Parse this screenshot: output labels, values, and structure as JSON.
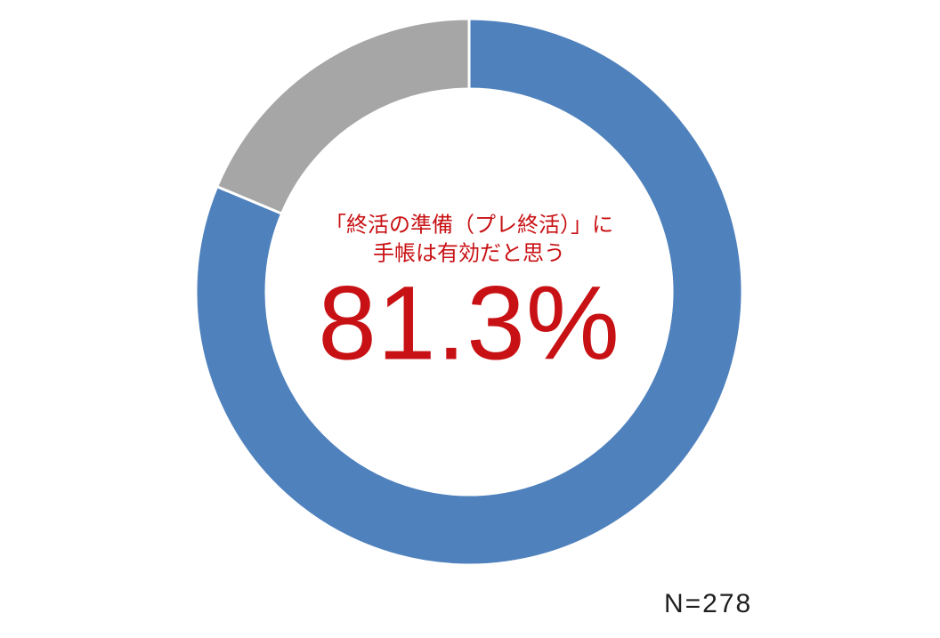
{
  "chart_data": {
    "type": "pie",
    "subtype": "donut",
    "values": [
      81.3,
      18.7
    ],
    "colors": [
      "#4F81BD",
      "#A6A6A6"
    ],
    "start_angle_deg": 0,
    "direction": "clockwise",
    "separator_color": "#FFFFFF",
    "legend": "none",
    "center_text": {
      "line1": "「終活の準備（プレ終活）」に",
      "line2": "手帳は有効だと思う",
      "value_label": "81.3%",
      "color": "#C81114"
    },
    "footnote": "N=278"
  }
}
